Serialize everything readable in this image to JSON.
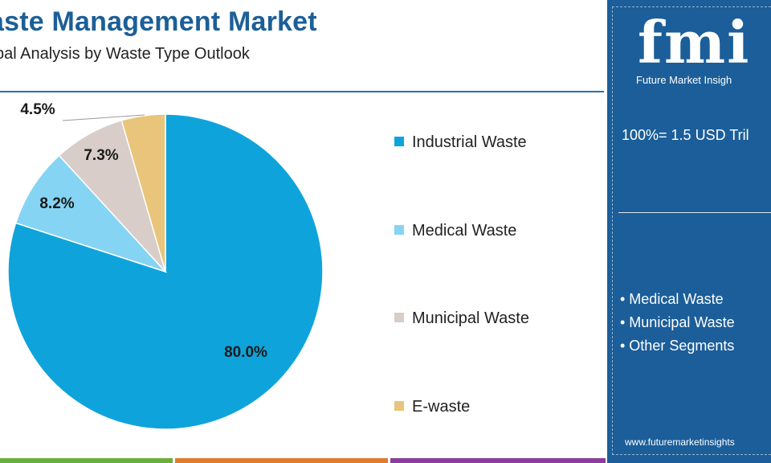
{
  "header": {
    "title": "aste Management Market",
    "subtitle": "bal Analysis by Waste Type Outlook"
  },
  "chart_data": {
    "type": "pie",
    "categories": [
      "Industrial Waste",
      "Medical Waste",
      "Municipal Waste",
      "E-waste"
    ],
    "values": [
      80.0,
      8.2,
      7.3,
      4.5
    ],
    "labels": [
      "80.0%",
      "8.2%",
      "7.3%",
      "4.5%"
    ],
    "colors": [
      "#0ea4db",
      "#86d4f3",
      "#d8cdc9",
      "#e8c57a"
    ],
    "start_angle": "12 o'clock",
    "direction": "clockwise",
    "legend_placement": "right"
  },
  "side_panel": {
    "logo_letters": "fmi",
    "logo_text": "Future Market Insigh",
    "total": "100%= 1.5 USD Tril",
    "segments": [
      "• Medical Waste",
      "• Municipal Waste",
      "• Other Segments"
    ],
    "website": "www.futuremarketinsights",
    "background": "#1b5e99"
  },
  "accent_colors": {
    "title": "#1c5f98",
    "bottom_bar": [
      "#6aae3b",
      "#e07a2c",
      "#8a3d9b",
      "#1b5e99"
    ]
  }
}
